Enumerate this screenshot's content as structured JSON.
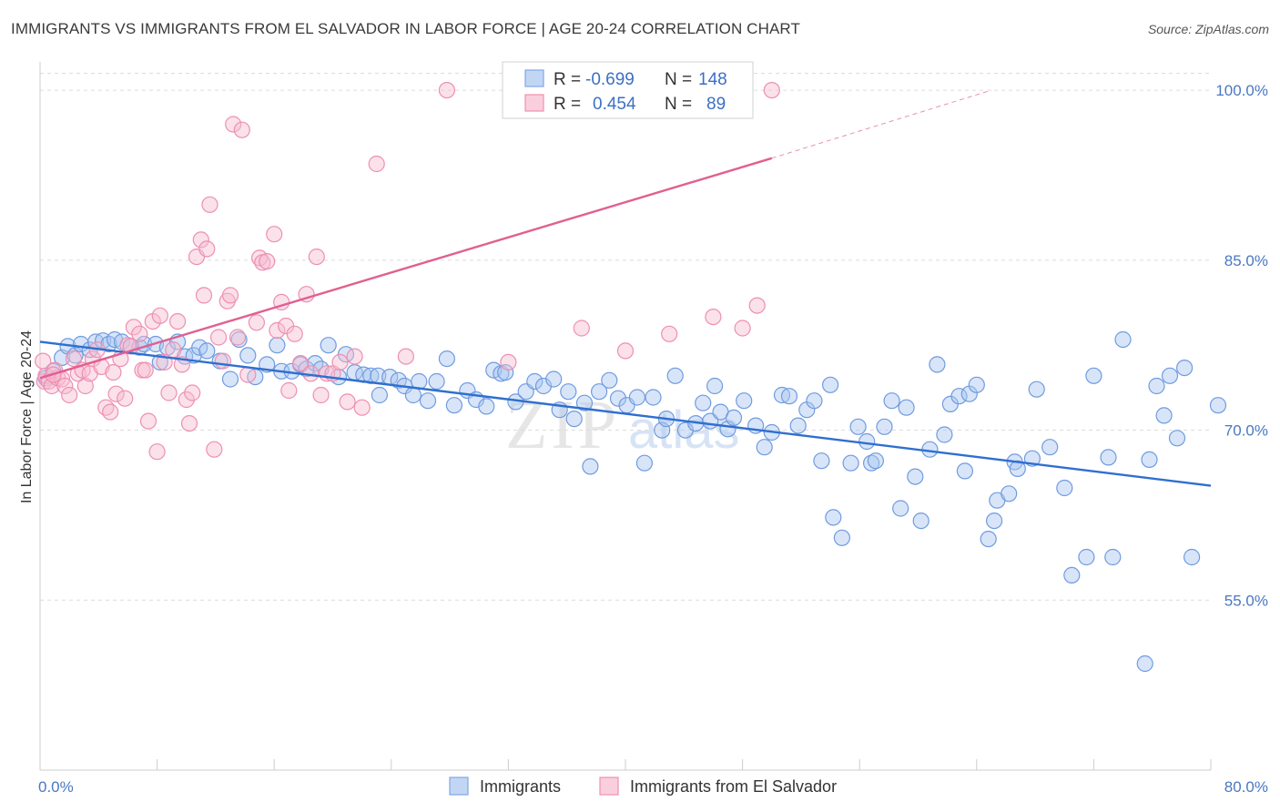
{
  "header": {
    "title": "IMMIGRANTS VS IMMIGRANTS FROM EL SALVADOR IN LABOR FORCE | AGE 20-24 CORRELATION CHART",
    "source": "Source: ZipAtlas.com"
  },
  "watermark": {
    "zip": "ZIP",
    "atlas": "atlas"
  },
  "legend_top": {
    "r_label": "R =",
    "n_label": "N =",
    "rows": [
      {
        "r": "-0.699",
        "n": "148",
        "color": "#7fa7e6"
      },
      {
        "r": "0.454",
        "n": "89",
        "color": "#f08fb0"
      }
    ]
  },
  "colors": {
    "blue_fill": "#a9c6f0",
    "blue_stroke": "#6f9be0",
    "blue_line": "#2f6fd0",
    "pink_fill": "#f7bcd0",
    "pink_stroke": "#ee8fb2",
    "pink_line": "#e06090",
    "grid": "#dcdcdc",
    "axis_text": "#4a78c2"
  },
  "chart_data": {
    "type": "scatter",
    "title": "IMMIGRANTS VS IMMIGRANTS FROM EL SALVADOR IN LABOR FORCE | AGE 20-24 CORRELATION CHART",
    "xlabel": "",
    "ylabel": "In Labor Force | Age 20-24",
    "xlim": [
      0,
      80
    ],
    "ylim": [
      40,
      102.5
    ],
    "x_tick_labels": [
      "0.0%",
      "80.0%"
    ],
    "y_ticks": [
      55,
      70,
      85,
      100
    ],
    "y_tick_labels": [
      "55.0%",
      "70.0%",
      "85.0%",
      "100.0%"
    ],
    "grid": "horizontal dashed",
    "legend": "top-center and bottom",
    "series": [
      {
        "name": "Immigrants",
        "r": -0.699,
        "n": 148,
        "trend": {
          "x": [
            0,
            80
          ],
          "y": [
            77.8,
            65.1
          ]
        },
        "points": [
          [
            0.4,
            74.6
          ],
          [
            0.9,
            75.2
          ],
          [
            1.5,
            76.4
          ],
          [
            1.9,
            77.4
          ],
          [
            2.4,
            76.6
          ],
          [
            2.8,
            77.6
          ],
          [
            3.4,
            77.1
          ],
          [
            3.8,
            77.8
          ],
          [
            4.3,
            77.9
          ],
          [
            4.7,
            77.6
          ],
          [
            5.1,
            78.0
          ],
          [
            5.6,
            77.8
          ],
          [
            6.2,
            77.4
          ],
          [
            6.8,
            77.3
          ],
          [
            7.1,
            77.6
          ],
          [
            7.9,
            77.6
          ],
          [
            8.2,
            76.0
          ],
          [
            8.7,
            77.3
          ],
          [
            9.4,
            77.8
          ],
          [
            9.9,
            76.5
          ],
          [
            10.5,
            76.6
          ],
          [
            10.9,
            77.3
          ],
          [
            11.4,
            77.0
          ],
          [
            12.3,
            76.1
          ],
          [
            13.0,
            74.5
          ],
          [
            13.6,
            78.0
          ],
          [
            14.2,
            76.6
          ],
          [
            14.7,
            74.7
          ],
          [
            15.5,
            75.8
          ],
          [
            16.2,
            77.5
          ],
          [
            16.5,
            75.2
          ],
          [
            17.2,
            75.2
          ],
          [
            17.8,
            75.8
          ],
          [
            18.2,
            75.4
          ],
          [
            18.8,
            75.9
          ],
          [
            19.2,
            75.4
          ],
          [
            19.7,
            77.5
          ],
          [
            20.4,
            74.7
          ],
          [
            20.9,
            76.7
          ],
          [
            21.5,
            75.1
          ],
          [
            22.1,
            74.9
          ],
          [
            22.6,
            74.8
          ],
          [
            23.1,
            74.8
          ],
          [
            23.2,
            73.1
          ],
          [
            23.9,
            74.7
          ],
          [
            24.5,
            74.4
          ],
          [
            24.9,
            73.9
          ],
          [
            25.5,
            73.1
          ],
          [
            25.9,
            74.3
          ],
          [
            26.5,
            72.6
          ],
          [
            27.1,
            74.3
          ],
          [
            27.8,
            76.3
          ],
          [
            28.3,
            72.2
          ],
          [
            29.2,
            73.5
          ],
          [
            29.8,
            72.7
          ],
          [
            30.5,
            72.1
          ],
          [
            31.0,
            75.3
          ],
          [
            31.5,
            75.0
          ],
          [
            31.8,
            75.1
          ],
          [
            32.5,
            72.5
          ],
          [
            33.2,
            73.4
          ],
          [
            33.8,
            74.3
          ],
          [
            34.4,
            73.9
          ],
          [
            35.1,
            74.5
          ],
          [
            35.5,
            71.8
          ],
          [
            36.1,
            73.4
          ],
          [
            36.5,
            71.0
          ],
          [
            37.2,
            72.4
          ],
          [
            37.6,
            66.8
          ],
          [
            38.2,
            73.4
          ],
          [
            38.9,
            74.4
          ],
          [
            39.5,
            72.8
          ],
          [
            40.1,
            72.2
          ],
          [
            40.8,
            72.9
          ],
          [
            41.3,
            67.1
          ],
          [
            41.9,
            72.9
          ],
          [
            42.5,
            70.0
          ],
          [
            42.8,
            71.0
          ],
          [
            43.4,
            74.8
          ],
          [
            44.1,
            70.0
          ],
          [
            44.8,
            70.6
          ],
          [
            45.3,
            72.4
          ],
          [
            45.8,
            70.8
          ],
          [
            46.1,
            73.9
          ],
          [
            46.5,
            71.6
          ],
          [
            47.0,
            70.1
          ],
          [
            47.4,
            71.1
          ],
          [
            48.1,
            72.6
          ],
          [
            48.9,
            70.4
          ],
          [
            49.5,
            68.5
          ],
          [
            50.0,
            69.8
          ],
          [
            50.7,
            73.1
          ],
          [
            51.2,
            73.0
          ],
          [
            51.8,
            70.4
          ],
          [
            52.4,
            71.8
          ],
          [
            52.9,
            72.6
          ],
          [
            53.4,
            67.3
          ],
          [
            54.0,
            74.0
          ],
          [
            54.2,
            62.3
          ],
          [
            54.8,
            60.5
          ],
          [
            55.4,
            67.1
          ],
          [
            55.9,
            70.3
          ],
          [
            56.5,
            69.0
          ],
          [
            56.8,
            67.1
          ],
          [
            57.1,
            67.3
          ],
          [
            57.7,
            70.3
          ],
          [
            58.2,
            72.6
          ],
          [
            58.8,
            63.1
          ],
          [
            59.2,
            72.0
          ],
          [
            59.8,
            65.9
          ],
          [
            60.2,
            62.0
          ],
          [
            60.8,
            68.3
          ],
          [
            61.3,
            75.8
          ],
          [
            61.8,
            69.6
          ],
          [
            62.2,
            72.3
          ],
          [
            62.8,
            73.0
          ],
          [
            63.2,
            66.4
          ],
          [
            63.5,
            73.2
          ],
          [
            64.0,
            74.0
          ],
          [
            64.8,
            60.4
          ],
          [
            65.2,
            62.0
          ],
          [
            65.4,
            63.8
          ],
          [
            66.2,
            64.4
          ],
          [
            66.6,
            67.2
          ],
          [
            66.8,
            66.6
          ],
          [
            67.8,
            67.5
          ],
          [
            68.1,
            73.6
          ],
          [
            69.0,
            68.5
          ],
          [
            70.0,
            64.9
          ],
          [
            70.5,
            57.2
          ],
          [
            71.5,
            58.8
          ],
          [
            72.0,
            74.8
          ],
          [
            73.0,
            67.6
          ],
          [
            73.3,
            58.8
          ],
          [
            74.0,
            78.0
          ],
          [
            75.5,
            49.4
          ],
          [
            75.8,
            67.4
          ],
          [
            76.3,
            73.9
          ],
          [
            76.8,
            71.3
          ],
          [
            77.2,
            74.8
          ],
          [
            77.7,
            69.3
          ],
          [
            78.2,
            75.5
          ],
          [
            78.7,
            58.8
          ],
          [
            80.5,
            72.2
          ]
        ]
      },
      {
        "name": "Immigrants from El Salvador",
        "r": 0.454,
        "n": 89,
        "trend": {
          "x": [
            0,
            50
          ],
          "y": [
            74.6,
            94.0
          ]
        },
        "trend_dashed": {
          "x": [
            50,
            65
          ],
          "y": [
            94.0,
            100.0
          ]
        },
        "points": [
          [
            0.2,
            76.1
          ],
          [
            0.3,
            74.3
          ],
          [
            0.4,
            74.8
          ],
          [
            0.6,
            74.3
          ],
          [
            0.8,
            73.9
          ],
          [
            1.0,
            75.3
          ],
          [
            1.2,
            74.6
          ],
          [
            1.5,
            74.5
          ],
          [
            1.7,
            73.9
          ],
          [
            2.0,
            73.1
          ],
          [
            2.3,
            76.3
          ],
          [
            2.6,
            75.0
          ],
          [
            2.9,
            75.3
          ],
          [
            3.1,
            73.9
          ],
          [
            3.4,
            75.0
          ],
          [
            3.6,
            76.3
          ],
          [
            3.9,
            77.1
          ],
          [
            4.2,
            75.6
          ],
          [
            4.5,
            72.0
          ],
          [
            4.8,
            71.6
          ],
          [
            5.0,
            75.1
          ],
          [
            5.2,
            73.2
          ],
          [
            5.5,
            76.3
          ],
          [
            5.8,
            72.8
          ],
          [
            6.0,
            77.5
          ],
          [
            6.2,
            77.4
          ],
          [
            6.4,
            79.1
          ],
          [
            6.8,
            78.5
          ],
          [
            7.0,
            75.3
          ],
          [
            7.2,
            75.3
          ],
          [
            7.4,
            70.8
          ],
          [
            7.7,
            79.6
          ],
          [
            8.0,
            68.1
          ],
          [
            8.2,
            80.1
          ],
          [
            8.5,
            76.0
          ],
          [
            8.8,
            73.3
          ],
          [
            9.1,
            77.1
          ],
          [
            9.4,
            79.6
          ],
          [
            9.7,
            75.8
          ],
          [
            10.0,
            72.7
          ],
          [
            10.2,
            70.6
          ],
          [
            10.4,
            73.3
          ],
          [
            10.7,
            85.3
          ],
          [
            11.0,
            86.8
          ],
          [
            11.2,
            81.9
          ],
          [
            11.4,
            86.0
          ],
          [
            11.6,
            89.9
          ],
          [
            11.9,
            68.3
          ],
          [
            12.2,
            78.2
          ],
          [
            12.5,
            76.1
          ],
          [
            12.8,
            81.4
          ],
          [
            13.0,
            81.9
          ],
          [
            13.2,
            97.0
          ],
          [
            13.5,
            78.2
          ],
          [
            13.8,
            96.5
          ],
          [
            14.2,
            74.9
          ],
          [
            14.8,
            79.5
          ],
          [
            15.0,
            85.2
          ],
          [
            15.2,
            84.8
          ],
          [
            15.5,
            84.9
          ],
          [
            16.0,
            87.3
          ],
          [
            16.2,
            78.8
          ],
          [
            16.5,
            81.3
          ],
          [
            16.8,
            79.2
          ],
          [
            17.0,
            73.5
          ],
          [
            17.4,
            78.5
          ],
          [
            17.8,
            75.9
          ],
          [
            18.2,
            82.0
          ],
          [
            18.5,
            75.0
          ],
          [
            18.9,
            85.3
          ],
          [
            19.2,
            73.1
          ],
          [
            19.6,
            75.0
          ],
          [
            20.0,
            75.0
          ],
          [
            20.5,
            76.0
          ],
          [
            21.0,
            72.5
          ],
          [
            21.5,
            76.5
          ],
          [
            22.0,
            72.0
          ],
          [
            23.0,
            93.5
          ],
          [
            25.0,
            76.5
          ],
          [
            27.8,
            100.0
          ],
          [
            32.0,
            76.0
          ],
          [
            37.0,
            79.0
          ],
          [
            40.0,
            77.0
          ],
          [
            43.0,
            78.5
          ],
          [
            46.0,
            80.0
          ],
          [
            48.0,
            79.0
          ],
          [
            49.0,
            81.0
          ],
          [
            50.0,
            100.0
          ],
          [
            0.9,
            74.9
          ]
        ]
      }
    ]
  },
  "legend_bottom": {
    "items": [
      {
        "label": "Immigrants"
      },
      {
        "label": "Immigrants from El Salvador"
      }
    ]
  }
}
